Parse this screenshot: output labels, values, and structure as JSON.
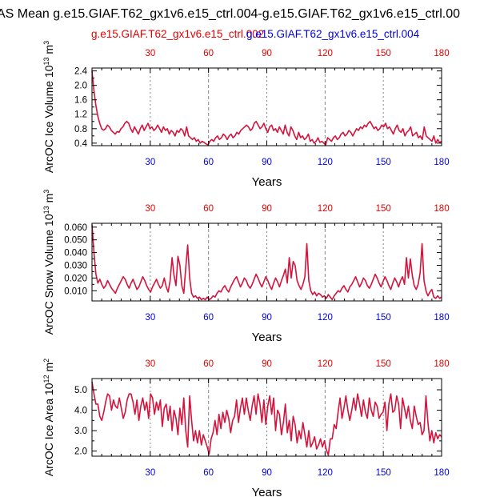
{
  "title": "AS Mean g.e15.GIAF.T62_gx1v6.e15_ctrl.004-g.e15.GIAF.T62_gx1v6.e15_ctrl.00",
  "legend": {
    "ctrl_002": "g.e15.GIAF.T62_gx1v6.e15_ctrl.002",
    "ctrl_004": "g.e15.GIAF.T62_gx1v6.e15_ctrl.004"
  },
  "colors": {
    "ctrl_002": "#e60000",
    "ctrl_004": "#0000e6",
    "line": "#d4143c",
    "grid": "#888888"
  },
  "chart_data": [
    {
      "type": "line",
      "name": "ice-volume",
      "xlabel": "Years",
      "ylabel_main": "ArcOC Ice Volume 10",
      "ylabel_exp": "13",
      "ylabel_unit": " m",
      "ylabel_unit_exp": "3",
      "xlim": [
        0,
        180
      ],
      "ylim": [
        0.33,
        2.48
      ],
      "xticks": [
        30,
        60,
        90,
        120,
        150,
        180
      ],
      "yticks": [
        0.4,
        0.8,
        1.2,
        1.6,
        2.0,
        2.4
      ],
      "ytick_labels": [
        "0.4",
        "0.8",
        "1.2",
        "1.6",
        "2.0",
        "2.4"
      ],
      "gridlines_x": [
        60,
        120
      ],
      "dotted_x": [
        30,
        90,
        150
      ],
      "series": [
        {
          "name": "g.e15.GIAF.T62_gx1v6.e15_ctrl.002",
          "values": [
            2.4,
            1.85,
            1.45,
            1.15,
            0.95,
            0.8,
            0.76,
            0.8,
            0.9,
            0.85,
            0.75,
            0.7,
            0.65,
            0.72,
            0.7,
            0.8,
            0.85,
            0.95,
            1.0,
            0.95,
            0.8,
            0.7,
            0.85,
            0.75,
            0.65,
            0.8,
            0.9,
            0.75,
            0.85,
            0.95,
            0.8,
            0.85,
            0.75,
            0.8,
            0.9,
            0.8,
            0.7,
            0.85,
            0.75,
            0.8,
            0.65,
            0.75,
            0.7,
            0.6,
            0.75,
            0.7,
            0.8,
            0.75,
            0.6,
            0.85,
            0.6,
            0.55,
            0.5,
            0.55,
            0.45,
            0.5,
            0.4,
            0.45,
            0.42,
            0.38,
            0.35,
            0.45,
            0.5,
            0.45,
            0.55,
            0.6,
            0.5,
            0.55,
            0.65,
            0.6,
            0.5,
            0.6,
            0.65,
            0.55,
            0.6,
            0.7,
            0.65,
            0.75,
            0.8,
            0.85,
            0.9,
            0.85,
            0.75,
            0.8,
            0.95,
            1.0,
            0.9,
            0.8,
            0.85,
            0.95,
            0.8,
            0.7,
            0.85,
            0.9,
            0.75,
            0.8,
            0.7,
            0.85,
            0.75,
            0.65,
            0.9,
            0.7,
            0.6,
            0.85,
            0.75,
            0.6,
            0.5,
            0.7,
            0.55,
            0.6,
            0.5,
            0.55,
            0.65,
            0.45,
            0.5,
            0.4,
            0.45,
            0.55,
            0.42,
            0.45,
            0.4,
            0.35,
            0.55,
            0.5,
            0.45,
            0.55,
            0.6,
            0.5,
            0.55,
            0.65,
            0.7,
            0.6,
            0.65,
            0.75,
            0.7,
            0.6,
            0.7,
            0.8,
            0.75,
            0.85,
            0.8,
            0.9,
            0.85,
            0.95,
            1.0,
            0.9,
            0.8,
            0.85,
            0.75,
            0.8,
            0.9,
            0.85,
            0.95,
            0.8,
            0.85,
            0.75,
            0.65,
            0.8,
            0.9,
            0.75,
            0.7,
            0.8,
            0.6,
            0.7,
            0.75,
            0.85,
            0.6,
            0.65,
            0.7,
            0.55,
            0.6,
            0.5,
            0.85,
            0.6,
            0.55,
            0.5,
            0.45,
            0.6,
            0.4,
            0.5,
            0.42,
            0.45
          ]
        }
      ]
    },
    {
      "type": "line",
      "name": "snow-volume",
      "xlabel": "Years",
      "ylabel_main": "ArcOC Snow Volume 10",
      "ylabel_exp": "13",
      "ylabel_unit": " m",
      "ylabel_unit_exp": "3",
      "xlim": [
        0,
        180
      ],
      "ylim": [
        0.002,
        0.063
      ],
      "xticks": [
        30,
        60,
        90,
        120,
        150,
        180
      ],
      "yticks": [
        0.01,
        0.02,
        0.03,
        0.04,
        0.05,
        0.06
      ],
      "ytick_labels": [
        "0.010",
        "0.020",
        "0.030",
        "0.040",
        "0.050",
        "0.060"
      ],
      "gridlines_x": [
        60,
        120
      ],
      "dotted_x": [
        30,
        90,
        150
      ],
      "series": [
        {
          "name": "g.e15.GIAF.T62_gx1v6.e15_ctrl.002",
          "values": [
            0.062,
            0.04,
            0.023,
            0.016,
            0.019,
            0.015,
            0.012,
            0.014,
            0.018,
            0.015,
            0.012,
            0.01,
            0.008,
            0.012,
            0.015,
            0.018,
            0.021,
            0.019,
            0.015,
            0.012,
            0.016,
            0.019,
            0.015,
            0.011,
            0.013,
            0.017,
            0.021,
            0.018,
            0.014,
            0.011,
            0.009,
            0.013,
            0.016,
            0.019,
            0.015,
            0.012,
            0.014,
            0.02,
            0.013,
            0.009,
            0.018,
            0.036,
            0.022,
            0.014,
            0.037,
            0.03,
            0.014,
            0.008,
            0.028,
            0.046,
            0.02,
            0.008,
            0.005,
            0.006,
            0.004,
            0.005,
            0.003,
            0.004,
            0.003,
            0.005,
            0.003,
            0.004,
            0.006,
            0.005,
            0.008,
            0.01,
            0.009,
            0.012,
            0.014,
            0.011,
            0.009,
            0.013,
            0.016,
            0.019,
            0.021,
            0.017,
            0.013,
            0.016,
            0.02,
            0.018,
            0.014,
            0.012,
            0.015,
            0.019,
            0.023,
            0.02,
            0.016,
            0.013,
            0.017,
            0.021,
            0.018,
            0.014,
            0.011,
            0.016,
            0.02,
            0.017,
            0.013,
            0.018,
            0.022,
            0.027,
            0.016,
            0.036,
            0.02,
            0.033,
            0.03,
            0.018,
            0.014,
            0.011,
            0.015,
            0.021,
            0.047,
            0.018,
            0.01,
            0.007,
            0.009,
            0.006,
            0.008,
            0.007,
            0.005,
            0.006,
            0.004,
            0.007,
            0.005,
            0.003,
            0.006,
            0.008,
            0.01,
            0.009,
            0.012,
            0.014,
            0.011,
            0.009,
            0.013,
            0.015,
            0.018,
            0.021,
            0.017,
            0.013,
            0.016,
            0.02,
            0.018,
            0.014,
            0.012,
            0.015,
            0.019,
            0.023,
            0.02,
            0.016,
            0.013,
            0.017,
            0.021,
            0.018,
            0.014,
            0.011,
            0.016,
            0.02,
            0.017,
            0.013,
            0.018,
            0.021,
            0.015,
            0.036,
            0.02,
            0.035,
            0.022,
            0.014,
            0.011,
            0.015,
            0.024,
            0.047,
            0.018,
            0.01,
            0.006,
            0.009,
            0.011,
            0.005,
            0.004,
            0.006,
            0.004,
            0.005
          ]
        }
      ]
    },
    {
      "type": "line",
      "name": "ice-area",
      "xlabel": "Years",
      "ylabel_main": "ArcOC Ice Area 10",
      "ylabel_exp": "12",
      "ylabel_unit": " m",
      "ylabel_unit_exp": "2",
      "xlim": [
        0,
        180
      ],
      "ylim": [
        1.75,
        5.55
      ],
      "xticks": [
        30,
        60,
        90,
        120,
        150,
        180
      ],
      "yticks": [
        2.0,
        3.0,
        4.0,
        5.0
      ],
      "ytick_labels": [
        "2.0",
        "3.0",
        "4.0",
        "5.0"
      ],
      "gridlines_x": [
        60,
        120
      ],
      "dotted_x": [
        30,
        90,
        150
      ],
      "series": [
        {
          "name": "g.e15.GIAF.T62_gx1v6.e15_ctrl.002",
          "values": [
            5.4,
            4.8,
            4.3,
            4.3,
            3.7,
            3.5,
            3.9,
            4.4,
            4.8,
            4.7,
            4.0,
            4.5,
            4.2,
            4.1,
            4.6,
            4.1,
            3.6,
            3.9,
            4.5,
            4.8,
            4.8,
            4.4,
            3.8,
            4.5,
            3.5,
            4.2,
            4.6,
            4.0,
            4.4,
            3.6,
            4.8,
            4.6,
            3.8,
            4.4,
            4.0,
            4.5,
            3.2,
            4.1,
            4.3,
            3.5,
            4.2,
            3.0,
            4.0,
            3.6,
            2.8,
            4.1,
            3.3,
            4.6,
            3.0,
            2.2,
            4.7,
            3.5,
            2.5,
            3.0,
            2.4,
            3.0,
            2.3,
            2.8,
            2.5,
            2.2,
            1.85,
            2.6,
            2.9,
            3.5,
            2.8,
            3.8,
            3.1,
            3.9,
            3.4,
            4.0,
            3.6,
            2.9,
            3.5,
            3.7,
            4.5,
            3.4,
            4.1,
            4.6,
            3.8,
            4.6,
            4.0,
            3.5,
            4.2,
            4.7,
            3.8,
            4.8,
            4.3,
            3.4,
            4.5,
            3.3,
            4.2,
            4.7,
            3.8,
            4.6,
            3.0,
            4.0,
            3.8,
            2.8,
            3.4,
            4.3,
            2.9,
            3.5,
            2.5,
            3.7,
            3.3,
            2.4,
            3.0,
            2.6,
            3.4,
            2.8,
            2.2,
            3.0,
            2.2,
            2.4,
            2.7,
            2.1,
            2.3,
            2.6,
            2.2,
            2.5,
            2.05,
            1.8,
            2.6,
            2.6,
            3.3,
            3.1,
            3.9,
            4.6,
            3.6,
            4.1,
            4.7,
            4.0,
            3.5,
            4.0,
            4.6,
            4.0,
            4.8,
            4.3,
            3.7,
            4.5,
            3.9,
            3.6,
            4.6,
            4.0,
            3.7,
            4.4,
            4.2,
            3.6,
            3.8,
            3.9,
            4.4,
            3.0,
            4.3,
            4.8,
            3.9,
            4.0,
            4.7,
            4.3,
            3.1,
            4.6,
            4.1,
            3.6,
            4.2,
            3.5,
            3.1,
            4.2,
            3.7,
            3.3,
            3.4,
            2.8,
            3.0,
            4.7,
            3.4,
            2.5,
            3.0,
            2.4,
            2.9,
            2.6,
            2.8,
            2.7
          ]
        }
      ]
    }
  ]
}
